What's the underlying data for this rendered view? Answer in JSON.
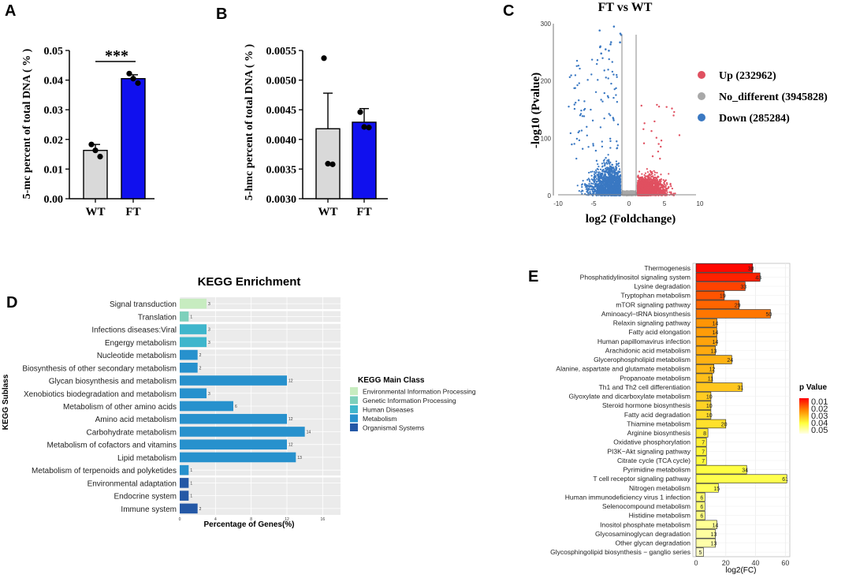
{
  "chart_data": [
    {
      "panel": "A",
      "type": "bar",
      "categories": [
        "WT",
        "FT"
      ],
      "values": [
        0.0163,
        0.0405
      ],
      "errors": [
        0.002,
        0.0013
      ],
      "points": [
        [
          0.0183,
          0.0163,
          0.0142
        ],
        [
          0.0422,
          0.0405,
          0.039
        ]
      ],
      "bar_colors": [
        "#d9d9d9",
        "#1010ee"
      ],
      "ylabel": "5-mc percent of total DNA ( % )",
      "ylim": [
        0,
        0.05
      ],
      "yticks": [
        "0.00",
        "0.01",
        "0.02",
        "0.03",
        "0.04",
        "0.05"
      ],
      "significance": "***"
    },
    {
      "panel": "B",
      "type": "bar",
      "categories": [
        "WT",
        "FT"
      ],
      "values": [
        0.00418,
        0.00429
      ],
      "errors": [
        0.0006,
        0.00023
      ],
      "points": [
        [
          0.00537,
          0.00359,
          0.00358
        ],
        [
          0.00446,
          0.00421,
          0.0042
        ]
      ],
      "bar_colors": [
        "#d9d9d9",
        "#1010ee"
      ],
      "ylabel": "5-hmc percent of total DNA ( % )",
      "ylim": [
        0.003,
        0.0055
      ],
      "yticks": [
        "0.0030",
        "0.0035",
        "0.0040",
        "0.0045",
        "0.0050",
        "0.0055"
      ]
    },
    {
      "panel": "C",
      "type": "scatter",
      "title": "FT vs WT",
      "xlabel": "log2 (Foldchange)",
      "ylabel": "-log10 (Pvalue)",
      "xlim": [
        -10,
        10
      ],
      "ylim": [
        0,
        300
      ],
      "xticks": [
        "-10",
        "-5",
        "0",
        "5",
        "10"
      ],
      "yticks": [
        "0",
        "100",
        "200",
        "300"
      ],
      "thresholds_x": [
        -1,
        1
      ],
      "legend": [
        {
          "label": "Up (232962)",
          "color": "#e05060"
        },
        {
          "label": "No_different (3945828)",
          "color": "#a8a8a8"
        },
        {
          "label": "Down (285284)",
          "color": "#3a78c2"
        }
      ]
    },
    {
      "panel": "D",
      "type": "bar",
      "orientation": "horizontal",
      "title": "KEGG Enrichment",
      "ylabel": "KEGG Sublass",
      "xlabel": "Percentage of Genes(%)",
      "xlim": [
        0,
        18
      ],
      "xticks": [
        "0",
        "4",
        "8",
        "12",
        "16"
      ],
      "categories": [
        "Signal transduction",
        "Translation",
        "Infections diseases:Viral",
        "Engergy metabolism",
        "Nucleotide metabolism",
        "Biosynthesis of other secondary metabolism",
        "Glycan biosynthesis and metabolism",
        "Xenobiotics biodegradation and metabolism",
        "Metabolism of other amino acids",
        "Amino acid metabolism",
        "Carbohydrate metabolism",
        "Metabolism of cofactors and vitamins",
        "Lipid metabolism",
        "Metabolism of terpenoids and polyketides",
        "Environmental adaptation",
        "Endocrine system",
        "Immune system"
      ],
      "values": [
        3,
        1,
        3,
        3,
        2,
        2,
        12,
        3,
        6,
        12,
        14,
        12,
        13,
        1,
        1,
        1,
        2
      ],
      "classes": [
        0,
        1,
        2,
        2,
        3,
        3,
        3,
        3,
        3,
        3,
        3,
        3,
        3,
        3,
        4,
        4,
        4
      ],
      "legend_title": "KEGG Main Class",
      "legend": [
        {
          "label": "Environmental Information Processing",
          "color": "#c7ecc0"
        },
        {
          "label": "Genetic Information Processing",
          "color": "#7dd0bb"
        },
        {
          "label": "Human Diseases",
          "color": "#3fb6cc"
        },
        {
          "label": "Metabolism",
          "color": "#2791cd"
        },
        {
          "label": "Organismal Systems",
          "color": "#2458a6"
        }
      ]
    },
    {
      "panel": "E",
      "type": "bar",
      "orientation": "horizontal",
      "xlabel": "log2(FC)",
      "xlim": [
        0,
        63
      ],
      "xticks": [
        "0",
        "20",
        "40",
        "60"
      ],
      "legend_title": "p Value",
      "legend_ticks": [
        "0.01",
        "0.02",
        "0.03",
        "0.04",
        "0.05"
      ],
      "categories": [
        "Thermogenesis",
        "Phosphatidylinositol signaling system",
        "Lysine degradation",
        "Tryptophan metabolism",
        "mTOR signaling pathway",
        "Aminoacyl−tRNA biosynthesis",
        "Relaxin signaling pathway",
        "Fatty acid elongation",
        "Human papillomavirus infection",
        "Arachidonic acid metabolism",
        "Glycerophospholipid metabolism",
        "Alanine, aspartate and glutamate metabolism",
        "Propanoate metabolism",
        "Th1 and Th2 cell differentiation",
        "Glyoxylate and dicarboxylate metabolism",
        "Steroid hormone biosynthesis",
        "Fatty acid degradation",
        "Thiamine metabolism",
        "Arginine biosynthesis",
        "Oxidative phosphorylation",
        "PI3K−Akt signaling pathway",
        "Citrate cycle (TCA cycle)",
        "Pyrimidine metabolism",
        "T cell receptor signaling pathway",
        "Nitrogen metabolism",
        "Human immunodeficiency virus 1 infection",
        "Selenocompound metabolism",
        "Histidine metabolism",
        "Inositol phosphate metabolism",
        "Glycosaminoglycan degradation",
        "Other glycan degradation",
        "Glycosphingolipid biosynthesis − ganglio series"
      ],
      "values": [
        38,
        43,
        33,
        19,
        29,
        50,
        14,
        14,
        14,
        13,
        24,
        12,
        11,
        31,
        10,
        10,
        10,
        20,
        8,
        7,
        7,
        7,
        34,
        61,
        15,
        6,
        6,
        6,
        14,
        13,
        13,
        5
      ],
      "pvalues": [
        0.003,
        0.006,
        0.01,
        0.012,
        0.014,
        0.016,
        0.02,
        0.021,
        0.022,
        0.023,
        0.024,
        0.025,
        0.026,
        0.027,
        0.028,
        0.029,
        0.03,
        0.031,
        0.032,
        0.033,
        0.034,
        0.035,
        0.036,
        0.037,
        0.038,
        0.04,
        0.041,
        0.042,
        0.044,
        0.045,
        0.046,
        0.049
      ],
      "labels": [
        "38",
        "43",
        "33",
        "19",
        "29",
        "50",
        "14",
        "14",
        "14",
        "13",
        "24",
        "12",
        "11",
        "31",
        "10",
        "10",
        "10",
        "20",
        "8",
        "7",
        "7",
        "7",
        "34",
        "61",
        "15",
        "6",
        "6",
        "6",
        "14",
        "13",
        "13",
        "5"
      ]
    }
  ],
  "panels": {
    "a": "A",
    "b": "B",
    "c": "C",
    "d": "D",
    "e": "E"
  }
}
